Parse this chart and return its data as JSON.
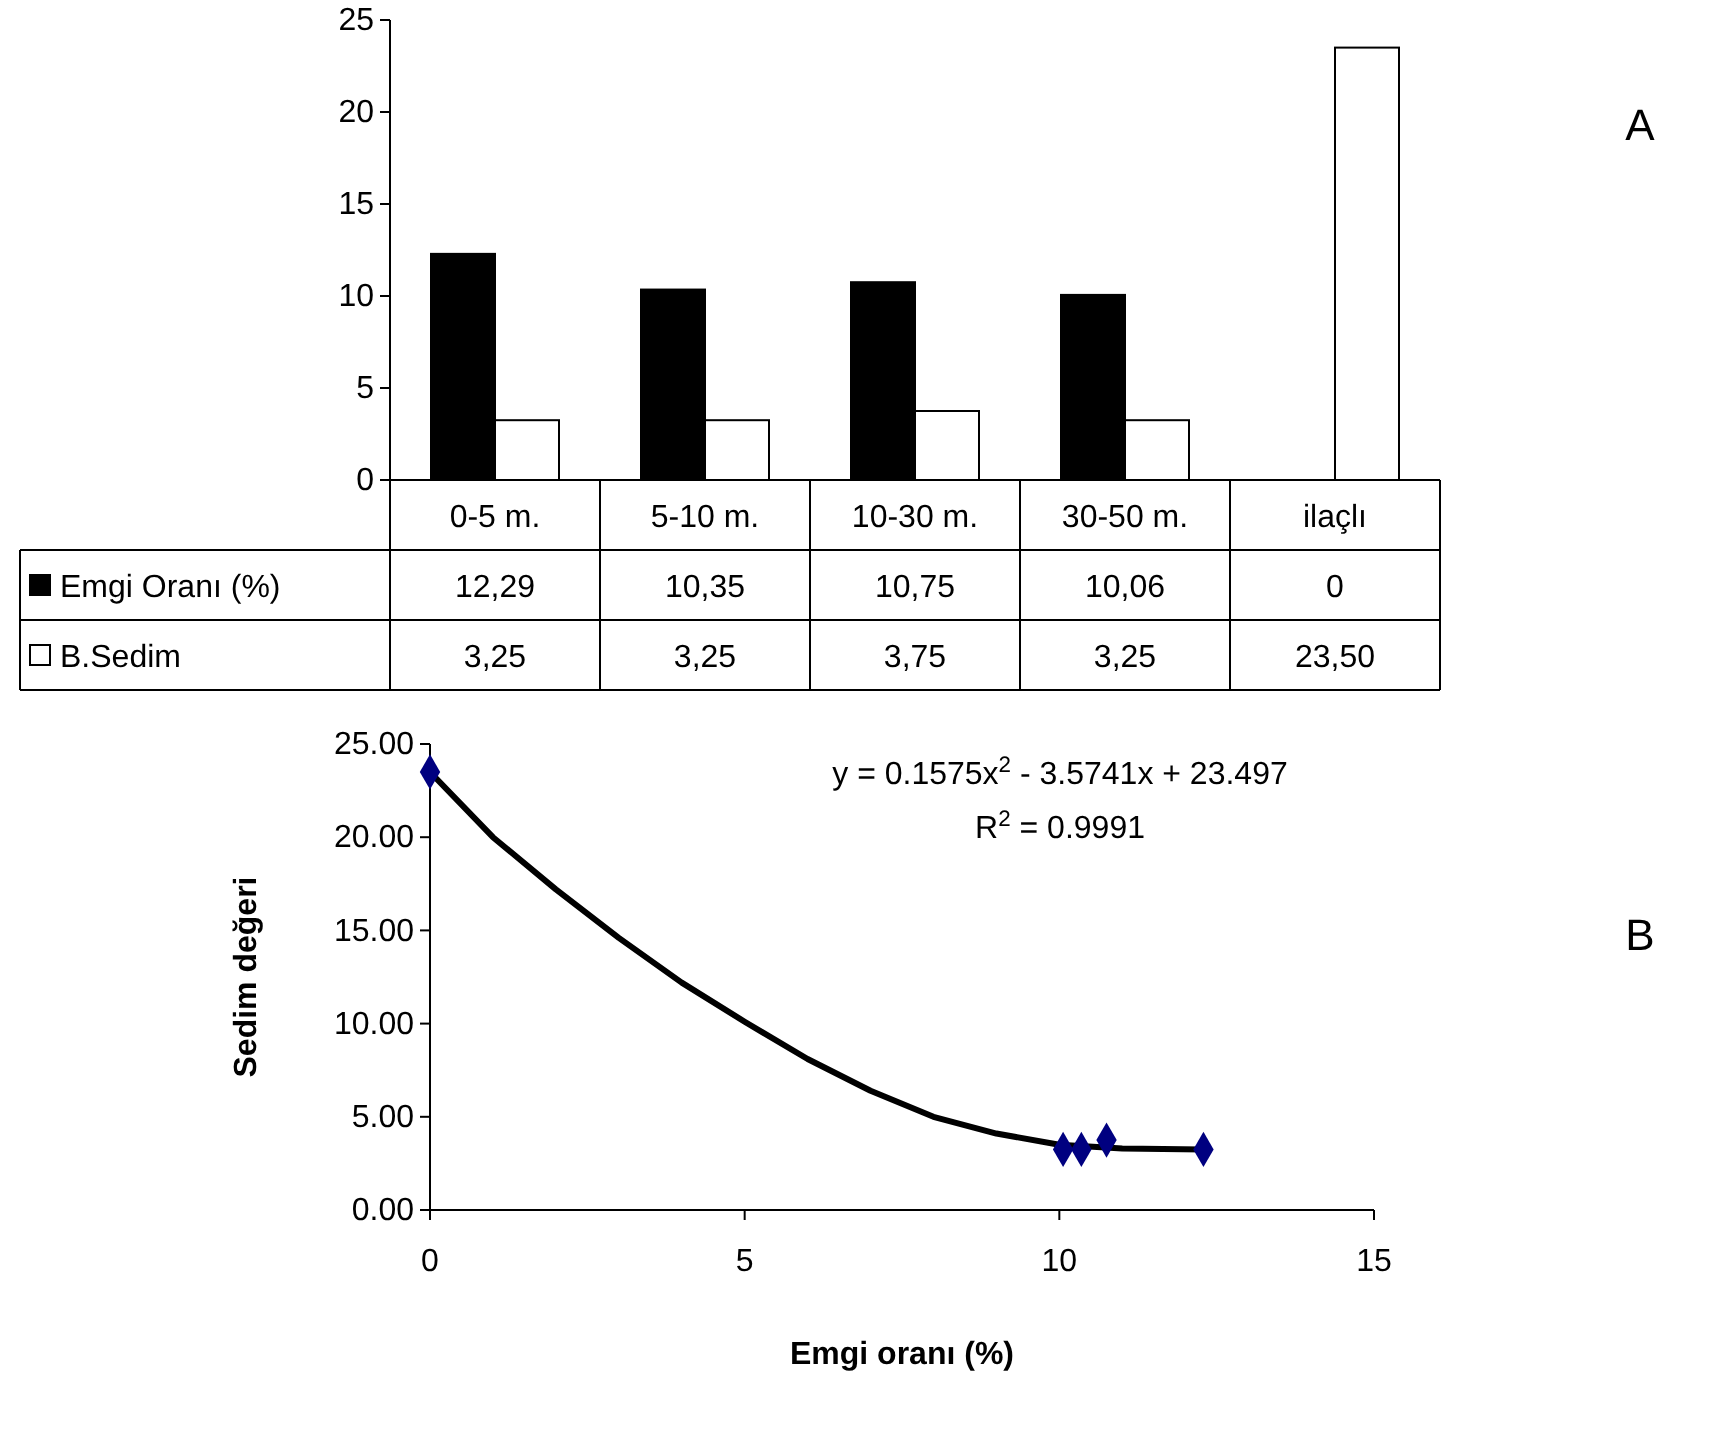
{
  "chart_data": [
    {
      "type": "bar",
      "categories": [
        "0-5 m.",
        "5-10 m.",
        "10-30 m.",
        "30-50 m.",
        "ilaçlı"
      ],
      "series": [
        {
          "name": "Emgi Oranı (%)",
          "color": "#000000",
          "values": [
            12.29,
            10.35,
            10.75,
            10.06,
            0
          ],
          "value_labels": [
            "12,29",
            "10,35",
            "10,75",
            "10,06",
            "0"
          ]
        },
        {
          "name": "B.Sedim",
          "color": "#ffffff",
          "values": [
            3.25,
            3.25,
            3.75,
            3.25,
            23.5
          ],
          "value_labels": [
            "3,25",
            "3,25",
            "3,75",
            "3,25",
            "23,50"
          ]
        }
      ],
      "ylim": [
        0,
        25
      ],
      "yticks": [
        0,
        5,
        10,
        15,
        20,
        25
      ],
      "legend": "bottom left",
      "annotations": [
        "A"
      ]
    },
    {
      "type": "scatter",
      "xlabel": "Emgi oranı (%)",
      "ylabel": "Sedim değeri",
      "series": [
        {
          "type": "scatter",
          "marker": "diamond",
          "color": "#000080",
          "x": [
            12.29,
            10.35,
            10.75,
            10.06,
            0
          ],
          "values": [
            3.25,
            3.25,
            3.75,
            3.25,
            23.5
          ]
        },
        {
          "type": "line",
          "color": "#000000",
          "x": [
            0,
            1,
            2,
            3,
            4,
            5,
            6,
            7,
            8,
            9,
            10,
            11,
            12.29
          ],
          "values": [
            23.5,
            20,
            17.2,
            14.6,
            12.2,
            10.1,
            8.1,
            6.4,
            5.0,
            4.1,
            3.5,
            3.3,
            3.25
          ]
        }
      ],
      "xlim": [
        0,
        15
      ],
      "xticks": [
        0,
        5,
        10,
        15
      ],
      "ylim": [
        0,
        25
      ],
      "yticks": [
        {
          "value": 0,
          "label": "0.00"
        },
        {
          "value": 5,
          "label": "5.00"
        },
        {
          "value": 10,
          "label": "10.00"
        },
        {
          "value": 15,
          "label": "15.00"
        },
        {
          "value": 20,
          "label": "20.00"
        },
        {
          "value": 25,
          "label": "25.00"
        }
      ],
      "annotations": [
        "y = 0.1575x$^{2}$ - 3.5741x + 23.497",
        "R$^{2}$ = 0.9991",
        "B"
      ]
    }
  ]
}
